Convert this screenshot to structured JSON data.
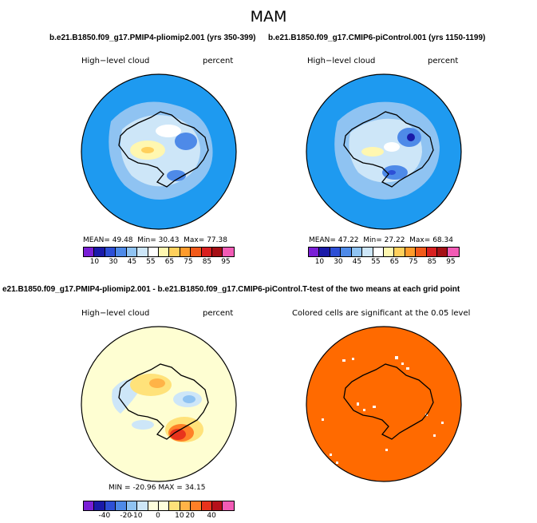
{
  "figure": {
    "season": "MAM"
  },
  "panels": {
    "top_left": {
      "run_title": "b.e21.B1850.f09_g17.PMIP4-pliomip2.001 (yrs 350-399)",
      "label_left": "High−level cloud",
      "label_right": "percent",
      "stats": {
        "mean_label": "MEAN=",
        "mean": "49.48",
        "min_label": "Min=",
        "min": "30.43",
        "max_label": "Max=",
        "max": "77.38"
      }
    },
    "top_right": {
      "run_title": "b.e21.B1850.f09_g17.CMIP6-piControl.001 (yrs 1150-1199)",
      "label_left": "High−level cloud",
      "label_right": "percent",
      "stats": {
        "mean_label": "MEAN=",
        "mean": "47.22",
        "min_label": "Min=",
        "min": "27.22",
        "max_label": "Max=",
        "max": "68.34"
      }
    },
    "bottom_left": {
      "run_title": "e21.B1850.f09_g17.PMIP4-pliomip2.001 - b.e21.B1850.f09_g17.CMIP6-piControl.001",
      "label_left": "High−level cloud",
      "label_right": "percent",
      "stats": {
        "min_label": "MIN =",
        "min": "-20.96",
        "max_label": "MAX =",
        "max": "34.15"
      }
    },
    "bottom_right": {
      "run_title": "T-test of the two means at each grid point",
      "label": "Colored cells are significant at the 0.05 level"
    }
  },
  "colorbars": {
    "absolute": {
      "colors": [
        "#7a1fd6",
        "#1a1aa8",
        "#2d4fd6",
        "#4e8ae8",
        "#8fc3f2",
        "#cde6f8",
        "#ffffff",
        "#fff7b0",
        "#ffd05c",
        "#ff9b2b",
        "#f25a1a",
        "#d81f1f",
        "#a50f15",
        "#f25bb5"
      ],
      "ticks": [
        "10",
        "30",
        "45",
        "55",
        "65",
        "75",
        "85",
        "95"
      ]
    },
    "difference": {
      "colors": [
        "#7a1fd6",
        "#1a1aa8",
        "#2d4fd6",
        "#4e8ae8",
        "#8fc3f2",
        "#cde6f8",
        "#fefedc",
        "#fefedc",
        "#ffe27a",
        "#ffb347",
        "#ff7f27",
        "#e8331c",
        "#b5101a",
        "#f25bb5"
      ],
      "ticks": [
        "-40",
        "-20",
        "-10",
        "0",
        "10",
        "20",
        "40"
      ]
    }
  },
  "map_colors": {
    "ocean_top": "#1e9af0",
    "ocean_diff": "#fefed2",
    "significant": "#ff6a00",
    "coast": "#000000"
  }
}
